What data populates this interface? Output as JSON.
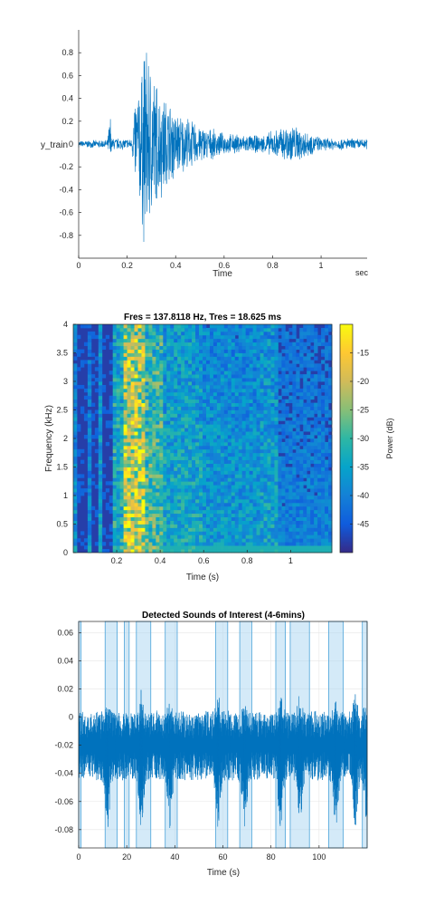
{
  "chart_data": [
    {
      "type": "line",
      "xlabel": "Time",
      "xunit": "sec",
      "ylabel": "y_train",
      "xlim": [
        0,
        1.19
      ],
      "ylim": [
        -1,
        1
      ],
      "xticks": [
        "0",
        "0.2",
        "0.4",
        "0.6",
        "0.8",
        "1"
      ],
      "yticks": [
        "0.8",
        "0.6",
        "0.4",
        "0.2",
        "0",
        "-0.2",
        "-0.4",
        "-0.6",
        "-0.8"
      ],
      "color": "#0072BD",
      "envelope": [
        {
          "t": 0.0,
          "a": 0.03
        },
        {
          "t": 0.12,
          "a": 0.04
        },
        {
          "t": 0.13,
          "a": 0.35
        },
        {
          "t": 0.135,
          "a": 0.06
        },
        {
          "t": 0.22,
          "a": 0.05
        },
        {
          "t": 0.23,
          "a": 0.42
        },
        {
          "t": 0.26,
          "a": 0.7
        },
        {
          "t": 0.27,
          "a": 1.0
        },
        {
          "t": 0.3,
          "a": 0.78
        },
        {
          "t": 0.33,
          "a": 0.55
        },
        {
          "t": 0.4,
          "a": 0.32
        },
        {
          "t": 0.5,
          "a": 0.18
        },
        {
          "t": 0.6,
          "a": 0.1
        },
        {
          "t": 0.75,
          "a": 0.08
        },
        {
          "t": 0.88,
          "a": 0.2
        },
        {
          "t": 0.92,
          "a": 0.15
        },
        {
          "t": 1.0,
          "a": 0.06
        },
        {
          "t": 1.19,
          "a": 0.05
        }
      ]
    },
    {
      "type": "heatmap",
      "title": "Fres = 137.8118 Hz, Tres = 18.625 ms",
      "xlabel": "Time (s)",
      "ylabel": "Frequency (kHz)",
      "colorbar_label": "Power (dB)",
      "xlim": [
        0,
        1.19
      ],
      "ylim": [
        0,
        4
      ],
      "clim": [
        -50,
        -10
      ],
      "xticks": [
        "0.2",
        "0.4",
        "0.6",
        "0.8",
        "1"
      ],
      "yticks": [
        "4",
        "3.5",
        "3",
        "2.5",
        "2",
        "1.5",
        "1",
        "0.5",
        "0"
      ],
      "cticks": [
        "-15",
        "-20",
        "-25",
        "-30",
        "-35",
        "-40",
        "-45"
      ],
      "colormap": "parula",
      "bands": [
        {
          "t0": 0.0,
          "t1": 0.02,
          "level": 0.35
        },
        {
          "t0": 0.07,
          "t1": 0.09,
          "level": 0.3
        },
        {
          "t0": 0.12,
          "t1": 0.14,
          "level": 0.4
        },
        {
          "t0": 0.19,
          "t1": 0.23,
          "level": 0.5
        },
        {
          "t0": 0.23,
          "t1": 0.33,
          "level": 0.85
        },
        {
          "t0": 0.33,
          "t1": 0.42,
          "level": 0.6
        },
        {
          "t0": 0.42,
          "t1": 0.6,
          "level": 0.45
        },
        {
          "t0": 0.6,
          "t1": 0.86,
          "level": 0.38
        },
        {
          "t0": 0.86,
          "t1": 0.95,
          "level": 0.42
        },
        {
          "t0": 0.95,
          "t1": 1.19,
          "level": 0.28
        }
      ]
    },
    {
      "type": "line",
      "title": "Detected Sounds of Interest (4-6mins)",
      "xlabel": "Time (s)",
      "xlim": [
        0,
        120
      ],
      "ylim": [
        -0.093,
        0.068
      ],
      "xticks": [
        "0",
        "20",
        "40",
        "60",
        "80",
        "100"
      ],
      "yticks": [
        "0.06",
        "0.04",
        "0.02",
        "0",
        "-0.02",
        "-0.04",
        "-0.06",
        "-0.08"
      ],
      "grid": true,
      "color": "#0072BD",
      "highlight_color": "#A9D6F2",
      "regions": [
        [
          0,
          1
        ],
        [
          11,
          16
        ],
        [
          19,
          21
        ],
        [
          24,
          30
        ],
        [
          36,
          41
        ],
        [
          57,
          62
        ],
        [
          67,
          72
        ],
        [
          82,
          86
        ],
        [
          88,
          96
        ],
        [
          104,
          110
        ],
        [
          118,
          120
        ]
      ],
      "spikes": [
        [
          12,
          0.012
        ],
        [
          26,
          0.02
        ],
        [
          38,
          0.014
        ],
        [
          58,
          0.018
        ],
        [
          69,
          0.014
        ],
        [
          84,
          0.016
        ],
        [
          92,
          0.018
        ],
        [
          107,
          0.012
        ],
        [
          115,
          0.018
        ],
        [
          120,
          0.016
        ]
      ]
    }
  ]
}
